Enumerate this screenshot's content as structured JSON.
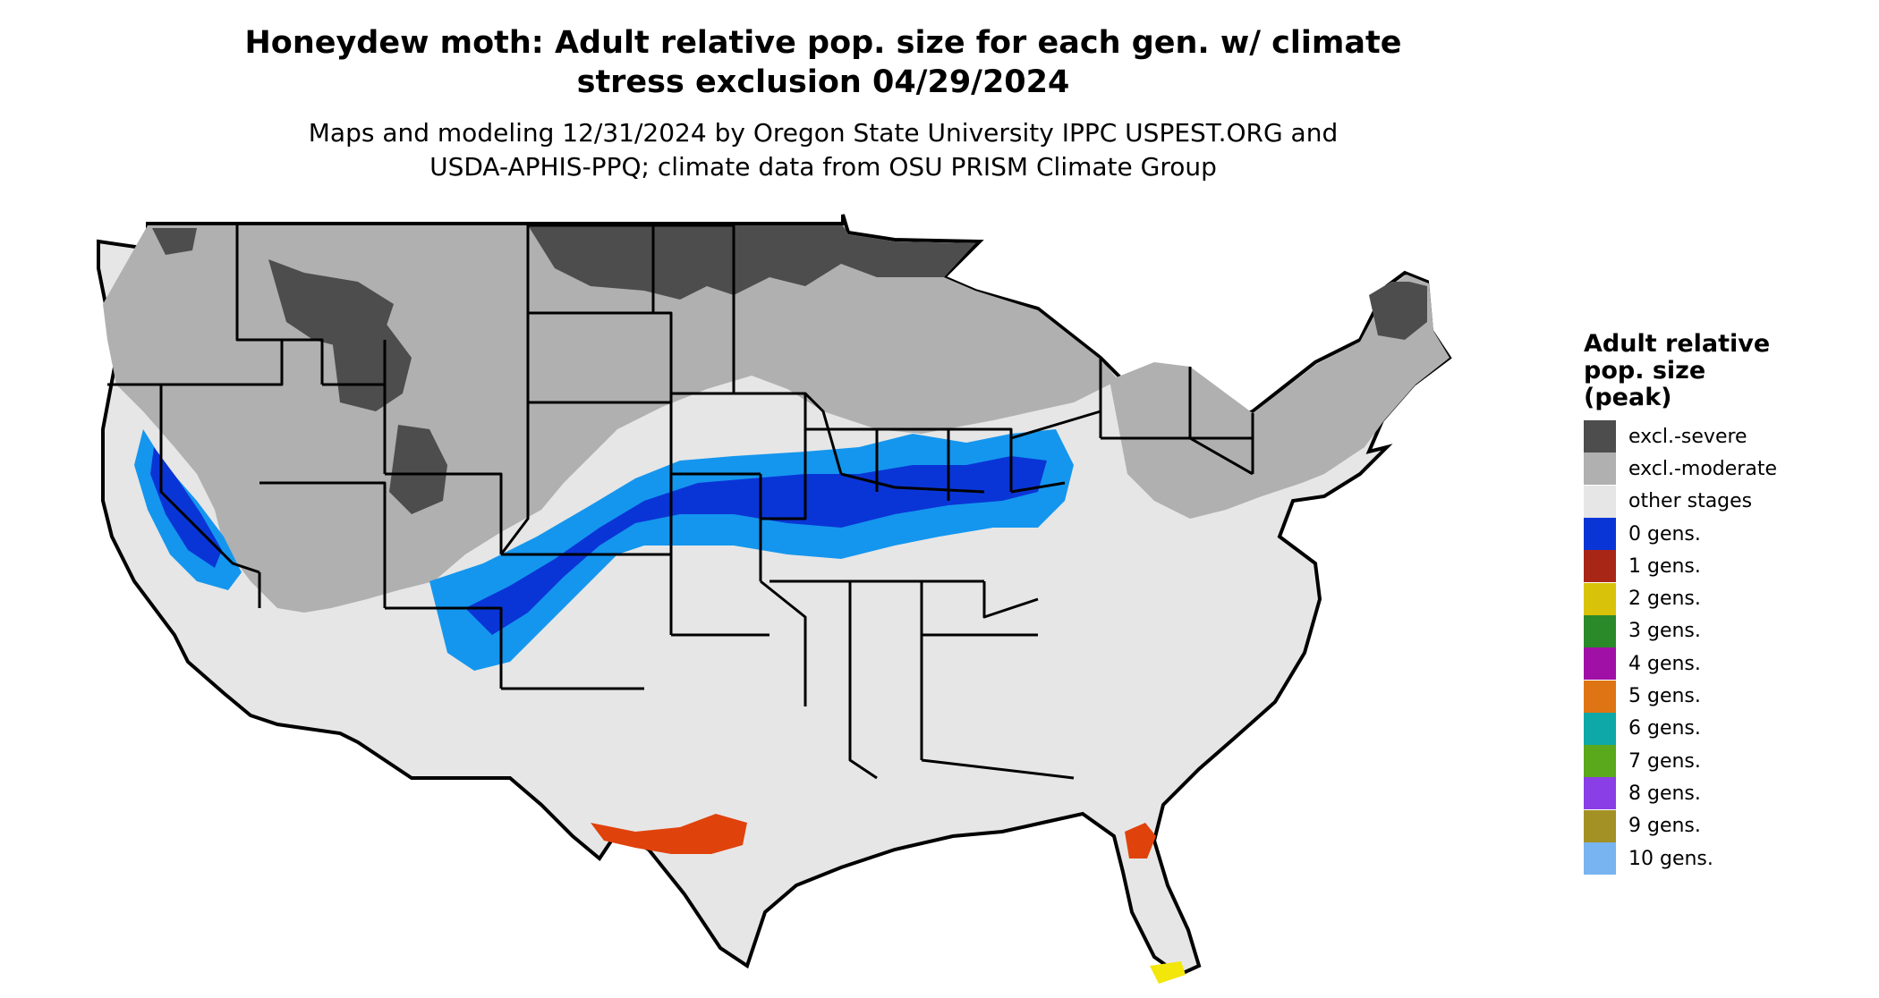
{
  "title_line1": "Honeydew moth: Adult relative pop. size for each gen. w/ climate",
  "title_line2": "stress exclusion 04/29/2024",
  "subtitle_line1": "Maps and modeling 12/31/2024 by Oregon State University IPPC USPEST.ORG and",
  "subtitle_line2": "USDA-APHIS-PPQ; climate data from OSU PRISM Climate Group",
  "legend": {
    "title_line1": "Adult relative",
    "title_line2": "pop. size",
    "title_line3": "(peak)",
    "items": [
      {
        "label": "excl.-severe",
        "color": "#4d4d4d"
      },
      {
        "label": "excl.-moderate",
        "color": "#b0b0b0"
      },
      {
        "label": "other stages",
        "color": "#e6e6e6"
      },
      {
        "label": "0 gens.",
        "color": "#0a35d6"
      },
      {
        "label": "1 gens.",
        "color": "#a82616"
      },
      {
        "label": "2 gens.",
        "color": "#d9c20a"
      },
      {
        "label": "3 gens.",
        "color": "#2a8a2a"
      },
      {
        "label": "4 gens.",
        "color": "#a010a6"
      },
      {
        "label": "5 gens.",
        "color": "#de7414"
      },
      {
        "label": "6 gens.",
        "color": "#0ea8a8"
      },
      {
        "label": "7 gens.",
        "color": "#5aa81c"
      },
      {
        "label": "8 gens.",
        "color": "#8a3ee6"
      },
      {
        "label": "9 gens.",
        "color": "#a39126"
      },
      {
        "label": "10 gens.",
        "color": "#78b4f0"
      }
    ]
  },
  "map_colors": {
    "land_other": "#e6e6e6",
    "moderate": "#b0b0b0",
    "severe": "#4d4d4d",
    "zero_gen_dark": "#0a35d6",
    "zero_gen_light": "#1496ee",
    "orange_red": "#e0420c",
    "yellow": "#f2e60a",
    "border": "#000000"
  }
}
